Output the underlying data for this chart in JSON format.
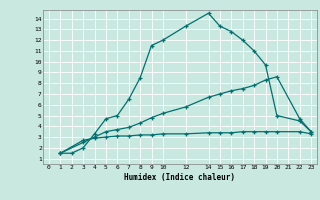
{
  "xlabel": "Humidex (Indice chaleur)",
  "bg_color": "#c8e8e0",
  "grid_color": "#ffffff",
  "line_color": "#007070",
  "xlim": [
    -0.5,
    23.5
  ],
  "ylim": [
    0.5,
    14.8
  ],
  "xticks": [
    0,
    1,
    2,
    3,
    4,
    5,
    6,
    7,
    8,
    9,
    10,
    12,
    14,
    15,
    16,
    17,
    18,
    19,
    20,
    21,
    22,
    23
  ],
  "yticks": [
    1,
    2,
    3,
    4,
    5,
    6,
    7,
    8,
    9,
    10,
    11,
    12,
    13,
    14
  ],
  "line1_x": [
    1,
    2,
    3,
    4,
    5,
    6,
    7,
    8,
    9,
    10,
    12,
    14,
    15,
    16,
    17,
    18,
    19,
    20,
    22,
    23
  ],
  "line1_y": [
    1.5,
    1.5,
    2.0,
    3.3,
    4.7,
    5.0,
    6.5,
    8.5,
    11.5,
    12.0,
    13.3,
    14.5,
    13.3,
    12.8,
    12.0,
    11.0,
    9.7,
    5.0,
    4.5,
    3.5
  ],
  "line2_x": [
    1,
    3,
    4,
    5,
    6,
    7,
    8,
    9,
    10,
    12,
    14,
    15,
    16,
    17,
    18,
    19,
    20,
    22,
    23
  ],
  "line2_y": [
    1.5,
    2.5,
    3.0,
    3.5,
    3.7,
    3.9,
    4.3,
    4.8,
    5.2,
    5.8,
    6.7,
    7.0,
    7.3,
    7.5,
    7.8,
    8.3,
    8.6,
    4.7,
    3.5
  ],
  "line3_x": [
    1,
    3,
    4,
    5,
    6,
    7,
    8,
    9,
    10,
    12,
    14,
    15,
    16,
    17,
    18,
    19,
    20,
    22,
    23
  ],
  "line3_y": [
    1.5,
    2.7,
    2.9,
    3.0,
    3.1,
    3.1,
    3.2,
    3.2,
    3.3,
    3.3,
    3.4,
    3.4,
    3.4,
    3.5,
    3.5,
    3.5,
    3.5,
    3.5,
    3.3
  ]
}
